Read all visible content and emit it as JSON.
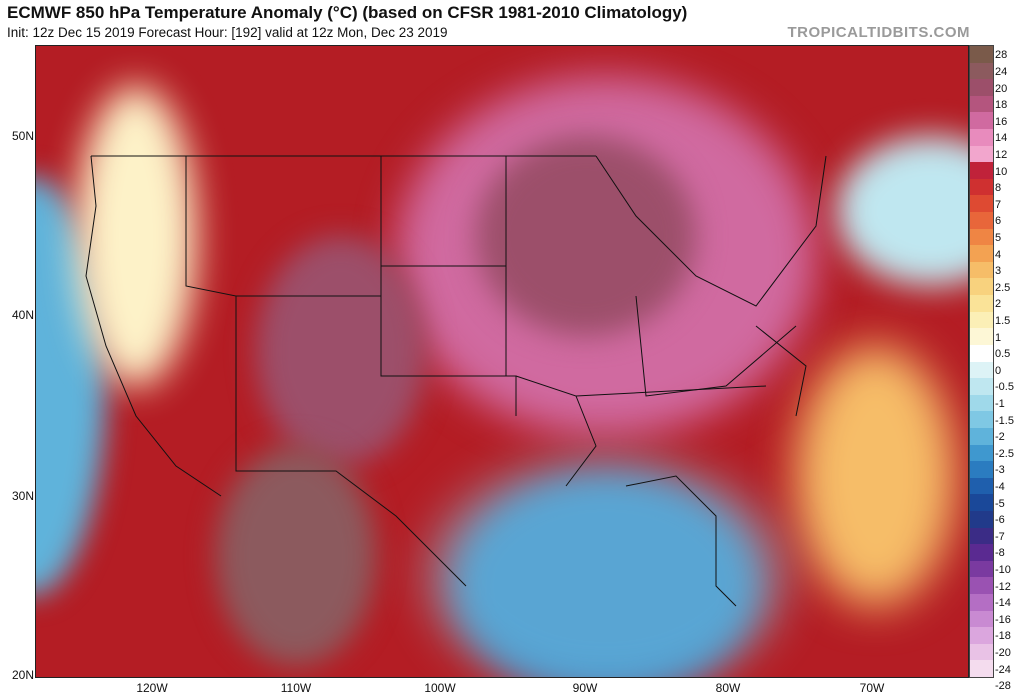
{
  "header": {
    "title": "ECMWF 850 hPa Temperature Anomaly (°C) (based on CFSR 1981-2010 Climatology)",
    "subtitle": "Init: 12z Dec 15 2019   Forecast Hour: [192]   valid at 12z Mon, Dec 23 2019",
    "brand": "TROPICALTIDBITS.COM"
  },
  "map": {
    "lat_labels": [
      "50N",
      "40N",
      "30N",
      "20N"
    ],
    "lon_labels": [
      "120W",
      "110W",
      "100W",
      "90W",
      "80W",
      "70W"
    ]
  },
  "colorbar": {
    "labels": [
      "28",
      "24",
      "20",
      "18",
      "16",
      "14",
      "12",
      "10",
      "8",
      "7",
      "6",
      "5",
      "4",
      "3",
      "2.5",
      "2",
      "1.5",
      "1",
      "0.5",
      "0",
      "-0.5",
      "-1",
      "-1.5",
      "-2",
      "-2.5",
      "-3",
      "-4",
      "-5",
      "-6",
      "-7",
      "-8",
      "-10",
      "-12",
      "-14",
      "-16",
      "-18",
      "-20",
      "-24",
      "-28"
    ],
    "colors": [
      "#7a5a4a",
      "#8c5a5e",
      "#9c4f6a",
      "#b4557e",
      "#d06aa0",
      "#e88bbd",
      "#f2a6cd",
      "#c0223a",
      "#cf3030",
      "#de4a32",
      "#e8663a",
      "#ef8544",
      "#f3a252",
      "#f6bd68",
      "#f8d27e",
      "#fae398",
      "#fbefb6",
      "#fdf7d6",
      "#ffffff",
      "#ddf3f6",
      "#bfe7f0",
      "#9fd9ea",
      "#7fc8e4",
      "#5fb3db",
      "#3f98cf",
      "#2b7cc0",
      "#1f5fad",
      "#1a4899",
      "#213a8a",
      "#3b2c86",
      "#5a2a91",
      "#7a3aa0",
      "#9a52b2",
      "#b46ec4",
      "#c98ad2",
      "#dba6de",
      "#e9c2e6",
      "#f4dcee"
    ]
  }
}
